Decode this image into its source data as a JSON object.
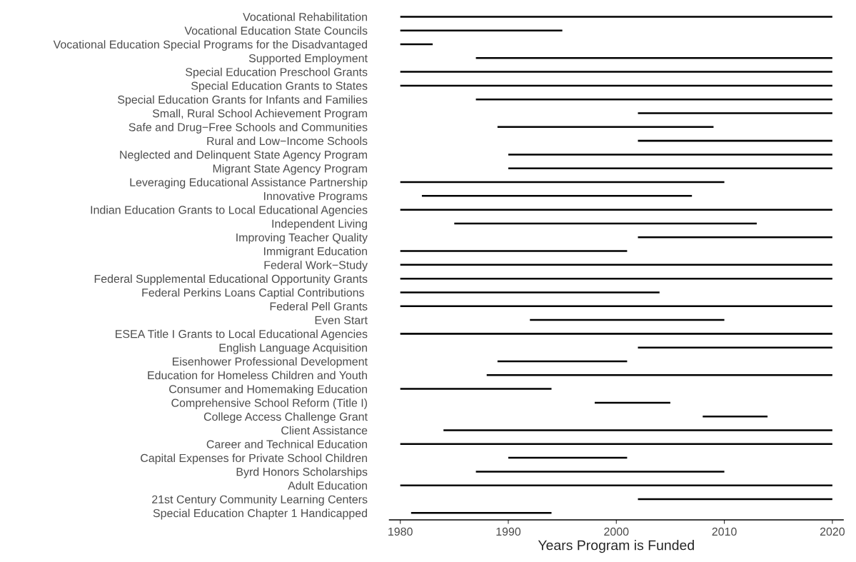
{
  "chart_data": {
    "type": "bar",
    "orientation": "horizontal",
    "xlabel": "Years Program is Funded",
    "categories": [
      "Vocational Rehabilitation",
      "Vocational Education State Councils",
      "Vocational Education Special Programs for the Disadvantaged",
      "Supported Employment",
      "Special Education Preschool Grants",
      "Special Education Grants to States",
      "Special Education Grants for Infants and Families",
      "Small, Rural School Achievement Program",
      "Safe and Drug−Free Schools and Communities",
      "Rural and Low−Income Schools",
      "Neglected and Delinquent State Agency Program",
      "Migrant State Agency Program",
      "Leveraging Educational Assistance Partnership",
      "Innovative Programs",
      "Indian Education Grants to Local Educational Agencies",
      "Independent Living",
      "Improving Teacher Quality",
      "Immigrant Education",
      "Federal Work−Study",
      "Federal Supplemental Educational Opportunity Grants",
      "Federal Perkins Loans Captial Contributions ",
      "Federal Pell Grants",
      "Even Start",
      "ESEA Title I Grants to Local Educational Agencies",
      "English Language Acquisition",
      "Eisenhower Professional Development",
      "Education for Homeless Children and Youth",
      "Consumer and Homemaking Education",
      "Comprehensive School Reform (Title I)",
      "College Access Challenge Grant",
      "Client Assistance",
      "Career and Technical Education",
      "Capital Expenses for Private School Children",
      "Byrd Honors Scholarships",
      "Adult Education",
      "21st Century Community Learning Centers",
      "Special Education Chapter 1 Handicapped"
    ],
    "base": [
      1980,
      1980,
      1980,
      1987,
      1980,
      1980,
      1987,
      2002,
      1989,
      2002,
      1990,
      1990,
      1980,
      1982,
      1980,
      1985,
      2002,
      1980,
      1980,
      1980,
      1980,
      1980,
      1992,
      1980,
      2002,
      1989,
      1988,
      1980,
      1998,
      2008,
      1984,
      1980,
      1990,
      1987,
      1980,
      2002,
      1981
    ],
    "values": [
      40,
      15,
      3,
      33,
      40,
      40,
      33,
      18,
      20,
      18,
      30,
      30,
      30,
      25,
      40,
      28,
      18,
      21,
      40,
      40,
      24,
      40,
      18,
      40,
      18,
      12,
      32,
      14,
      7,
      6,
      36,
      40,
      11,
      23,
      40,
      18,
      13
    ],
    "color": "#000000",
    "xlim": [
      1979,
      2021
    ],
    "xticks": [
      1980,
      1990,
      2000,
      2010,
      2020
    ],
    "grid": false,
    "legend": false
  }
}
